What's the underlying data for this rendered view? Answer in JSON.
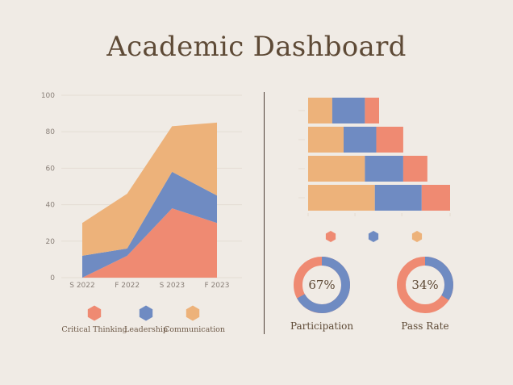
{
  "title": "Academic Dashboard",
  "colors": {
    "critical_thinking": "#ef8a72",
    "leadership": "#6f8bc2",
    "communication": "#edb27a",
    "background": "#f0ebe5",
    "text": "#5e4a36"
  },
  "chart_data": [
    {
      "type": "area",
      "stacked": true,
      "categories": [
        "S 2022",
        "F 2022",
        "S 2023",
        "F 2023"
      ],
      "ylim": [
        0,
        100
      ],
      "yticks": [
        0,
        20,
        40,
        60,
        80,
        100
      ],
      "grid": true,
      "legend_position": "bottom",
      "series": [
        {
          "name": "Critical Thinking",
          "values": [
            0,
            12,
            38,
            30
          ],
          "color": "#ef8a72"
        },
        {
          "name": "Leadership",
          "values": [
            12,
            4,
            20,
            15
          ],
          "color": "#6f8bc2"
        },
        {
          "name": "Communication",
          "values": [
            18,
            30,
            25,
            40
          ],
          "color": "#edb27a"
        }
      ]
    },
    {
      "type": "bar",
      "orientation": "horizontal",
      "stacked": true,
      "xlim": [
        0,
        100
      ],
      "legend_position": "bottom",
      "series": [
        {
          "color": "#edb27a",
          "values": [
            17,
            25,
            40,
            47
          ]
        },
        {
          "color": "#6f8bc2",
          "values": [
            23,
            23,
            27,
            33
          ]
        },
        {
          "color": "#ef8a72",
          "values": [
            10,
            19,
            17,
            20
          ]
        }
      ]
    },
    {
      "type": "pie",
      "variant": "donut",
      "label": "Participation",
      "value_label": "67%",
      "value": 67,
      "colors": {
        "filled": "#6f8bc2",
        "rest": "#ef8a72"
      }
    },
    {
      "type": "pie",
      "variant": "donut",
      "label": "Pass Rate",
      "value_label": "34%",
      "value": 34,
      "colors": {
        "filled": "#6f8bc2",
        "rest": "#ef8a72"
      }
    }
  ]
}
